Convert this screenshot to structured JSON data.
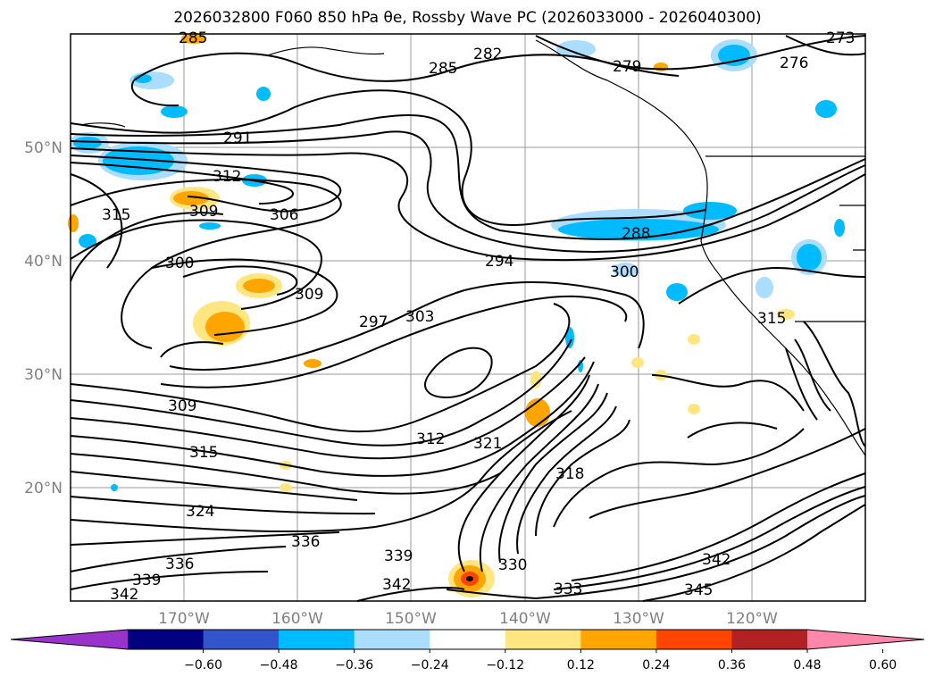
{
  "title": "2026032800 F060 850 hPa θe, Rossby Wave PC (2026033000 - 2026040300)",
  "map": {
    "latitude_labels": [
      "50°N",
      "40°N",
      "30°N",
      "20°N"
    ],
    "longitude_labels": [
      "170°W",
      "160°W",
      "150°W",
      "140°W",
      "130°W",
      "120°W"
    ],
    "contour_labels": [
      "285",
      "282",
      "279",
      "276",
      "273",
      "285",
      "291",
      "312",
      "315",
      "309",
      "306",
      "288",
      "294",
      "300",
      "300",
      "309",
      "297",
      "303",
      "315",
      "309",
      "312",
      "321",
      "315",
      "318",
      "324",
      "336",
      "339",
      "330",
      "336",
      "339",
      "342",
      "333",
      "342",
      "342",
      "345"
    ]
  },
  "colorbar": {
    "ticks": [
      "−0.60",
      "−0.48",
      "−0.36",
      "−0.24",
      "−0.12",
      "0.12",
      "0.24",
      "0.36",
      "0.48",
      "0.60"
    ],
    "colors": [
      "#9933cc",
      "#000080",
      "#3355cc",
      "#00bbff",
      "#aaddff",
      "#ffffff",
      "#ffe680",
      "#ffa500",
      "#ff4500",
      "#b22222",
      "#ff88aa"
    ]
  }
}
